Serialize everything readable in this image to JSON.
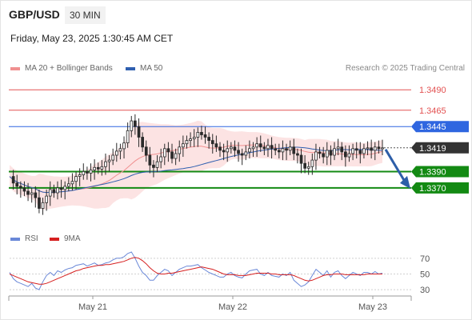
{
  "header": {
    "pair": "GBP/USD",
    "timeframe": "30 MIN",
    "timestamp": "Friday, May 23, 2025 1:30:45 AM CET"
  },
  "legend": {
    "ma20": "MA 20 + Bollinger Bands",
    "ma50": "MA 50",
    "copyright": "Research © 2025 Trading Central"
  },
  "rsi_legend": {
    "rsi": "RSI",
    "ma": "9MA"
  },
  "colors": {
    "resistance": "#e35252",
    "pivot": "#2f66e0",
    "support": "#138a13",
    "current": "#333333",
    "bollinger": "#fce3e3",
    "ma20": "#f09090",
    "ma50": "#2f5fb0",
    "candle_up": "#ffffff",
    "candle_down": "#2a2a2a",
    "rsi": "#6a88d8",
    "rsi_ma": "#d62020",
    "arrow": "#2d5ea8"
  },
  "chart_data": [
    {
      "type": "candlestick",
      "ylim": [
        1.332,
        1.35
      ],
      "xticks": [
        "May 21",
        "May 22",
        "May 23"
      ],
      "grid": false,
      "legend_position": "top-left",
      "levels": [
        {
          "label": "1.3490",
          "value": 1.349,
          "kind": "resistance"
        },
        {
          "label": "1.3465",
          "value": 1.3465,
          "kind": "resistance"
        },
        {
          "label": "1.3445",
          "value": 1.3445,
          "kind": "pivot"
        },
        {
          "label": "1.3419",
          "value": 1.3419,
          "kind": "current"
        },
        {
          "label": "1.3390",
          "value": 1.339,
          "kind": "support"
        },
        {
          "label": "1.3370",
          "value": 1.337,
          "kind": "support"
        }
      ],
      "close": [
        1.3384,
        1.3376,
        1.3372,
        1.337,
        1.3366,
        1.3362,
        1.3364,
        1.3358,
        1.3345,
        1.3352,
        1.336,
        1.3368,
        1.3364,
        1.337,
        1.3368,
        1.3372,
        1.3375,
        1.3378,
        1.3384,
        1.3386,
        1.339,
        1.3388,
        1.3392,
        1.3395,
        1.3393,
        1.3396,
        1.3402,
        1.3404,
        1.341,
        1.3415,
        1.3418,
        1.3425,
        1.344,
        1.3452,
        1.3445,
        1.3432,
        1.342,
        1.341,
        1.3398,
        1.3395,
        1.3402,
        1.3408,
        1.3418,
        1.3414,
        1.3406,
        1.3412,
        1.342,
        1.3424,
        1.3428,
        1.343,
        1.3432,
        1.3438,
        1.3435,
        1.3432,
        1.3428,
        1.3424,
        1.342,
        1.3416,
        1.3414,
        1.3418,
        1.342,
        1.3416,
        1.3412,
        1.341,
        1.3414,
        1.3418,
        1.342,
        1.3424,
        1.342,
        1.3418,
        1.3422,
        1.3418,
        1.3416,
        1.3414,
        1.3418,
        1.3416,
        1.342,
        1.3412,
        1.341,
        1.34,
        1.3394,
        1.3396,
        1.3404,
        1.3414,
        1.3412,
        1.3408,
        1.3416,
        1.341,
        1.3418,
        1.342,
        1.3414,
        1.3408,
        1.3412,
        1.3418,
        1.3416,
        1.3412,
        1.3418,
        1.3419,
        1.3416,
        1.342,
        1.3418,
        1.3419
      ]
    },
    {
      "type": "line",
      "title": "RSI",
      "ylim": [
        25,
        80
      ],
      "yticks": [
        70,
        50,
        30
      ],
      "series": [
        {
          "name": "RSI",
          "values": [
            52,
            44,
            40,
            38,
            36,
            34,
            38,
            32,
            30,
            40,
            48,
            52,
            48,
            54,
            52,
            55,
            57,
            58,
            61,
            62,
            63,
            60,
            62,
            64,
            61,
            62,
            64,
            65,
            68,
            70,
            70,
            72,
            76,
            78,
            70,
            60,
            52,
            48,
            42,
            42,
            48,
            52,
            56,
            54,
            48,
            52,
            56,
            58,
            60,
            60,
            61,
            62,
            58,
            55,
            52,
            50,
            48,
            46,
            46,
            50,
            52,
            48,
            46,
            45,
            50,
            54,
            55,
            56,
            50,
            48,
            52,
            48,
            47,
            46,
            50,
            48,
            52,
            42,
            38,
            34,
            36,
            40,
            48,
            56,
            52,
            48,
            54,
            46,
            52,
            54,
            48,
            44,
            48,
            52,
            50,
            48,
            52,
            52,
            50,
            53,
            50,
            51
          ]
        },
        {
          "name": "9MA",
          "values": [
            50,
            48,
            46,
            44,
            42,
            40,
            39,
            38,
            37,
            37,
            38,
            40,
            42,
            44,
            46,
            48,
            50,
            52,
            54,
            55,
            57,
            58,
            59,
            60,
            61,
            61,
            62,
            62,
            63,
            64,
            65,
            66,
            68,
            70,
            71,
            70,
            67,
            63,
            58,
            54,
            51,
            50,
            50,
            51,
            51,
            52,
            53,
            54,
            55,
            56,
            57,
            58,
            59,
            58,
            57,
            56,
            54,
            52,
            50,
            49,
            49,
            49,
            48,
            48,
            48,
            49,
            50,
            51,
            51,
            51,
            51,
            50,
            50,
            49,
            49,
            49,
            49,
            48,
            46,
            44,
            42,
            41,
            42,
            44,
            46,
            48,
            49,
            49,
            50,
            50,
            50,
            49,
            49,
            49,
            49,
            49,
            49,
            50,
            50,
            50,
            50,
            50
          ]
        }
      ]
    }
  ]
}
